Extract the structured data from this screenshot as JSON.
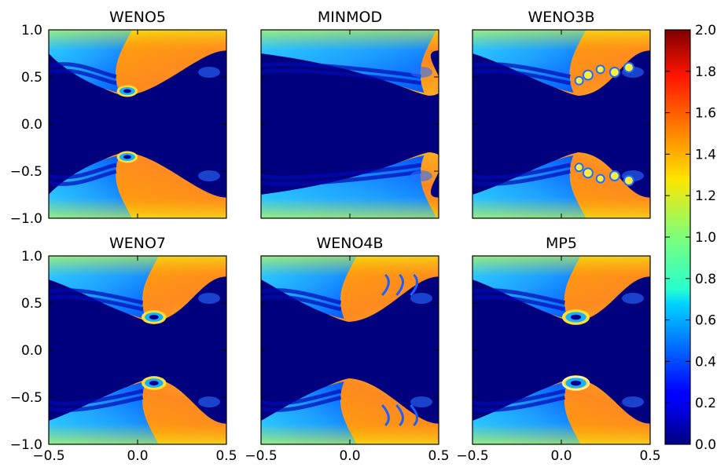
{
  "chart_data": {
    "type": "heatmap",
    "panels": [
      {
        "title": "WENO5",
        "vortex_x": -0.12,
        "roll": 0.55,
        "features": [
          "vortex",
          "streak"
        ]
      },
      {
        "title": "MINMOD",
        "vortex_x": 0.4,
        "roll": 0.15,
        "features": [
          "smooth"
        ]
      },
      {
        "title": "WENO3B",
        "vortex_x": 0.05,
        "roll": 0.6,
        "features": [
          "blobs",
          "streak"
        ]
      },
      {
        "title": "WENO7",
        "vortex_x": 0.03,
        "roll": 0.8,
        "features": [
          "vortex",
          "streak"
        ]
      },
      {
        "title": "WENO4B",
        "vortex_x": -0.05,
        "roll": 0.45,
        "features": [
          "filaments",
          "streak"
        ]
      },
      {
        "title": "MP5",
        "vortex_x": 0.02,
        "roll": 1.0,
        "features": [
          "vortex",
          "streak",
          "ring"
        ]
      }
    ],
    "x_ticks": [
      "−0.5",
      "0.0",
      "0.5"
    ],
    "y_ticks": [
      "1.0",
      "0.5",
      "0.0",
      "−0.5",
      "−1.0"
    ],
    "xlim": [
      -0.5,
      0.5
    ],
    "ylim": [
      -1.0,
      1.0
    ],
    "colorbar": {
      "range": [
        0.0,
        2.0
      ],
      "colormap": "jet",
      "ticks": [
        "2.0",
        "1.8",
        "1.6",
        "1.4",
        "1.2",
        "1.0",
        "0.8",
        "0.6",
        "0.4",
        "0.2",
        "0.0"
      ]
    },
    "grid": false,
    "legend": "none"
  }
}
